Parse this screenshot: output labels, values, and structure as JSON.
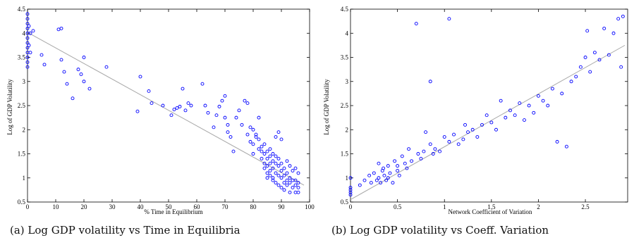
{
  "captions": {
    "a": "(a) Log GDP volatility vs Time in Equilibria",
    "b": "(b) Log GDP volatility vs Coeff. Variation"
  },
  "chart_data": [
    {
      "type": "scatter",
      "title": "",
      "xlabel": "% Time in Equilibrium",
      "ylabel": "Log of GDP Volatility",
      "xlim": [
        0,
        100
      ],
      "ylim": [
        0.5,
        4.5
      ],
      "xticks": [
        0,
        10,
        20,
        30,
        40,
        50,
        60,
        70,
        80,
        90,
        100
      ],
      "yticks": [
        0.5,
        1,
        1.5,
        2,
        2.5,
        3,
        3.5,
        4,
        4.5
      ],
      "marker_color": "#0000ff",
      "fit_line": {
        "x": [
          0,
          98
        ],
        "y": [
          4.02,
          0.85
        ],
        "color": "#a8a8a8"
      },
      "x": [
        0,
        0,
        0,
        0,
        0,
        0,
        0,
        0,
        0,
        0,
        0,
        0,
        0.5,
        0.5,
        1,
        1,
        2,
        5,
        6,
        11,
        12,
        12,
        13,
        14,
        16,
        18,
        19,
        20,
        20,
        22,
        28,
        39,
        40,
        43,
        44,
        48,
        51,
        52,
        53,
        54,
        55,
        56,
        57,
        58,
        62,
        63,
        64,
        66,
        67,
        68,
        69,
        70,
        70,
        71,
        71,
        72,
        73,
        74,
        75,
        76,
        77,
        78,
        78,
        79,
        79,
        80,
        80,
        80,
        81,
        81,
        82,
        82,
        82,
        83,
        83,
        83,
        84,
        84,
        84,
        84,
        85,
        85,
        85,
        85,
        85,
        86,
        86,
        86,
        86,
        86,
        87,
        87,
        87,
        87,
        87,
        88,
        88,
        88,
        88,
        88,
        89,
        89,
        89,
        89,
        89,
        90,
        90,
        90,
        90,
        90,
        91,
        91,
        91,
        91,
        92,
        92,
        92,
        92,
        93,
        93,
        93,
        93,
        94,
        94,
        94,
        95,
        95,
        95,
        95,
        96,
        96,
        96,
        96
      ],
      "y": [
        4.4,
        4.3,
        4.2,
        4.1,
        4.0,
        3.9,
        3.8,
        3.7,
        3.6,
        3.5,
        3.3,
        3.4,
        4.15,
        3.75,
        4.0,
        3.6,
        4.05,
        3.55,
        3.35,
        4.08,
        4.1,
        3.45,
        3.2,
        2.95,
        2.65,
        3.25,
        3.15,
        3.5,
        3.0,
        2.85,
        3.3,
        2.38,
        3.1,
        2.8,
        2.55,
        2.5,
        2.3,
        2.42,
        2.45,
        2.48,
        2.85,
        2.4,
        2.55,
        2.5,
        2.95,
        2.5,
        2.35,
        2.05,
        2.3,
        2.48,
        2.6,
        2.7,
        2.25,
        1.95,
        2.1,
        1.85,
        1.55,
        2.25,
        2.4,
        2.1,
        2.6,
        1.9,
        2.55,
        1.75,
        2.05,
        2.0,
        1.7,
        1.5,
        1.85,
        1.9,
        1.6,
        2.25,
        1.8,
        1.55,
        1.4,
        1.65,
        1.7,
        1.3,
        1.5,
        1.2,
        1.55,
        1.4,
        1.25,
        1.1,
        1.0,
        1.6,
        1.45,
        1.3,
        1.15,
        1.05,
        1.5,
        1.35,
        1.2,
        1.0,
        0.95,
        1.45,
        1.3,
        1.1,
        0.9,
        1.85,
        1.4,
        1.25,
        1.05,
        0.85,
        1.95,
        1.3,
        1.15,
        1.0,
        0.8,
        1.8,
        1.2,
        1.05,
        0.9,
        0.75,
        1.35,
        1.1,
        0.95,
        0.85,
        1.25,
        1.0,
        0.9,
        0.7,
        1.15,
        0.95,
        0.8,
        1.2,
        0.95,
        0.85,
        0.7,
        1.1,
        0.9,
        0.8,
        0.7
      ]
    },
    {
      "type": "scatter",
      "title": "",
      "xlabel": "Network Coefficient of Variation",
      "ylabel": "Log of GDP Volatility",
      "xlim": [
        0,
        2.95
      ],
      "ylim": [
        0.5,
        4.5
      ],
      "xticks": [
        0,
        0.5,
        1,
        1.5,
        2,
        2.5
      ],
      "yticks": [
        0.5,
        1,
        1.5,
        2,
        2.5,
        3,
        3.5,
        4,
        4.5
      ],
      "marker_color": "#0000ff",
      "fit_line": {
        "x": [
          0,
          2.92
        ],
        "y": [
          0.55,
          3.75
        ],
        "color": "#a8a8a8"
      },
      "x": [
        0,
        0,
        0,
        0,
        0,
        0.1,
        0.15,
        0.2,
        0.22,
        0.25,
        0.28,
        0.3,
        0.3,
        0.32,
        0.34,
        0.35,
        0.36,
        0.38,
        0.4,
        0.4,
        0.42,
        0.45,
        0.47,
        0.5,
        0.5,
        0.52,
        0.55,
        0.58,
        0.6,
        0.62,
        0.65,
        0.7,
        0.72,
        0.75,
        0.78,
        0.8,
        0.85,
        0.85,
        0.88,
        0.9,
        0.95,
        1.0,
        1.05,
        1.05,
        1.1,
        1.15,
        1.2,
        1.22,
        1.25,
        1.3,
        1.35,
        1.4,
        1.45,
        1.5,
        1.55,
        1.6,
        1.65,
        1.7,
        1.75,
        1.8,
        1.85,
        1.9,
        1.95,
        2.0,
        2.05,
        2.1,
        2.15,
        2.2,
        2.25,
        2.3,
        2.35,
        2.4,
        2.45,
        2.5,
        2.52,
        2.55,
        2.6,
        2.65,
        2.7,
        2.75,
        2.8,
        2.85,
        2.88,
        2.9
      ],
      "y": [
        1.0,
        0.8,
        0.75,
        0.7,
        0.65,
        0.85,
        0.95,
        1.05,
        0.9,
        1.1,
        0.95,
        1.0,
        1.3,
        0.9,
        1.15,
        1.2,
        1.05,
        0.95,
        1.25,
        1.0,
        1.1,
        0.9,
        1.35,
        1.15,
        1.25,
        1.05,
        1.45,
        1.3,
        1.2,
        1.6,
        1.35,
        4.2,
        1.5,
        1.4,
        1.55,
        1.95,
        3.0,
        1.7,
        1.5,
        1.6,
        1.55,
        1.85,
        4.3,
        1.75,
        1.9,
        1.7,
        1.8,
        2.1,
        1.95,
        2.0,
        1.85,
        2.1,
        2.3,
        2.15,
        2.0,
        2.6,
        2.25,
        2.4,
        2.3,
        2.55,
        2.2,
        2.5,
        2.35,
        2.7,
        2.6,
        2.5,
        2.85,
        1.75,
        2.75,
        1.65,
        3.0,
        3.1,
        3.3,
        3.5,
        4.05,
        3.2,
        3.6,
        3.45,
        4.1,
        3.55,
        4.0,
        4.3,
        3.3,
        4.35
      ]
    }
  ]
}
